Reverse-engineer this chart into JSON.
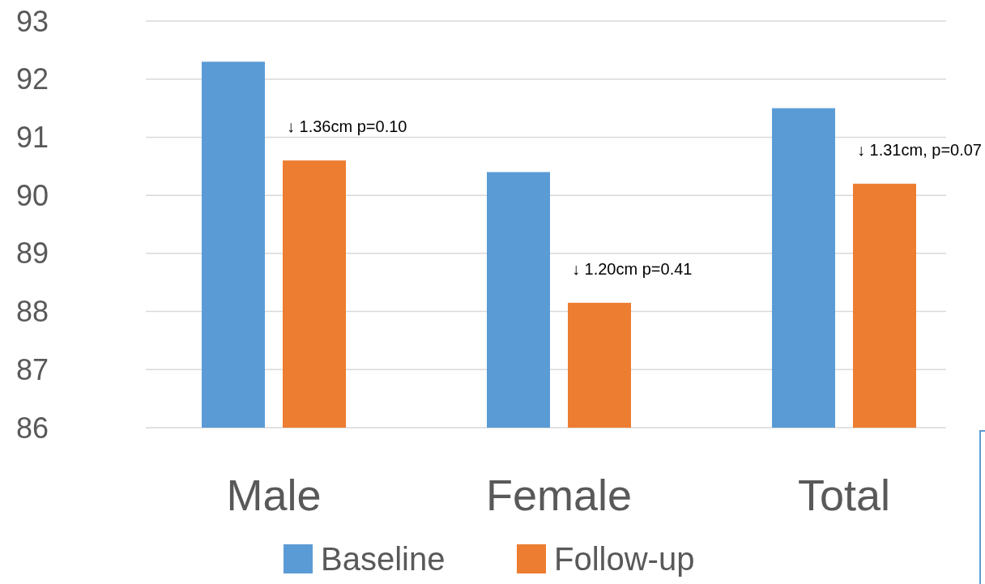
{
  "chart_data": {
    "type": "bar",
    "categories": [
      "Male",
      "Female",
      "Total"
    ],
    "series": [
      {
        "name": "Baseline",
        "color": "#5b9bd5",
        "values": [
          92.3,
          90.4,
          91.5
        ]
      },
      {
        "name": "Follow-up",
        "color": "#ed7d31",
        "values": [
          90.6,
          88.15,
          90.2
        ]
      }
    ],
    "ylim": [
      86,
      93
    ],
    "yticks": [
      86,
      87,
      88,
      89,
      90,
      91,
      92,
      93
    ],
    "grid": "y",
    "legend": "bottom",
    "annotations": [
      "↓ 1.36cm p=0.10",
      "↓ 1.20cm p=0.41",
      "↓ 1.31cm, p=0.07"
    ]
  }
}
